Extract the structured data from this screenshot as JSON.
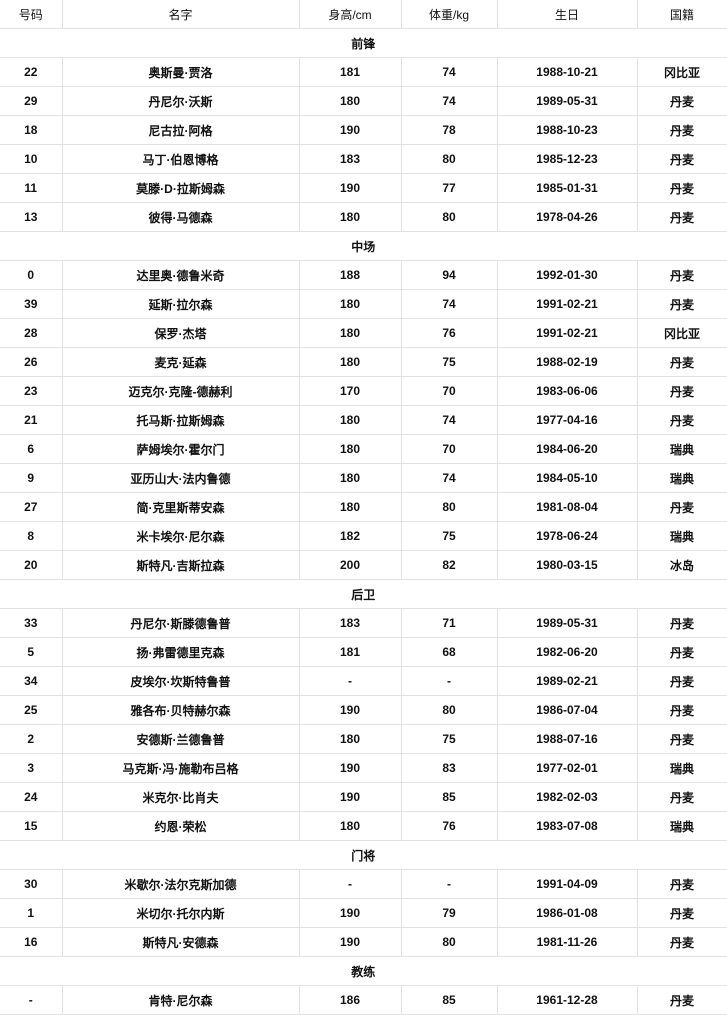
{
  "headers": [
    "号码",
    "名字",
    "身高/cm",
    "体重/kg",
    "生日",
    "国籍"
  ],
  "groups": [
    {
      "title": "前锋",
      "players": [
        [
          "22",
          "奥斯曼·贾洛",
          "181",
          "74",
          "1988-10-21",
          "冈比亚"
        ],
        [
          "29",
          "丹尼尔·沃斯",
          "180",
          "74",
          "1989-05-31",
          "丹麦"
        ],
        [
          "18",
          "尼古拉·阿格",
          "190",
          "78",
          "1988-10-23",
          "丹麦"
        ],
        [
          "10",
          "马丁·伯恩博格",
          "183",
          "80",
          "1985-12-23",
          "丹麦"
        ],
        [
          "11",
          "莫滕·D·拉斯姆森",
          "190",
          "77",
          "1985-01-31",
          "丹麦"
        ],
        [
          "13",
          "彼得·马德森",
          "180",
          "80",
          "1978-04-26",
          "丹麦"
        ]
      ]
    },
    {
      "title": "中场",
      "players": [
        [
          "0",
          "达里奥·德鲁米奇",
          "188",
          "94",
          "1992-01-30",
          "丹麦"
        ],
        [
          "39",
          "延斯·拉尔森",
          "180",
          "74",
          "1991-02-21",
          "丹麦"
        ],
        [
          "28",
          "保罗·杰塔",
          "180",
          "76",
          "1991-02-21",
          "冈比亚"
        ],
        [
          "26",
          "麦克·延森",
          "180",
          "75",
          "1988-02-19",
          "丹麦"
        ],
        [
          "23",
          "迈克尔·克隆-德赫利",
          "170",
          "70",
          "1983-06-06",
          "丹麦"
        ],
        [
          "21",
          "托马斯·拉斯姆森",
          "180",
          "74",
          "1977-04-16",
          "丹麦"
        ],
        [
          "6",
          "萨姆埃尔·霍尔门",
          "180",
          "70",
          "1984-06-20",
          "瑞典"
        ],
        [
          "9",
          "亚历山大·法内鲁德",
          "180",
          "74",
          "1984-05-10",
          "瑞典"
        ],
        [
          "27",
          "简·克里斯蒂安森",
          "180",
          "80",
          "1981-08-04",
          "丹麦"
        ],
        [
          "8",
          "米卡埃尔·尼尔森",
          "182",
          "75",
          "1978-06-24",
          "瑞典"
        ],
        [
          "20",
          "斯特凡·吉斯拉森",
          "200",
          "82",
          "1980-03-15",
          "冰岛"
        ]
      ]
    },
    {
      "title": "后卫",
      "players": [
        [
          "33",
          "丹尼尔·斯滕德鲁普",
          "183",
          "71",
          "1989-05-31",
          "丹麦"
        ],
        [
          "5",
          "扬·弗雷德里克森",
          "181",
          "68",
          "1982-06-20",
          "丹麦"
        ],
        [
          "34",
          "皮埃尔·坎斯特鲁普",
          "-",
          "-",
          "1989-02-21",
          "丹麦"
        ],
        [
          "25",
          "雅各布·贝特赫尔森",
          "190",
          "80",
          "1986-07-04",
          "丹麦"
        ],
        [
          "2",
          "安德斯·兰德鲁普",
          "180",
          "75",
          "1988-07-16",
          "丹麦"
        ],
        [
          "3",
          "马克斯·冯·施勒布吕格",
          "190",
          "83",
          "1977-02-01",
          "瑞典"
        ],
        [
          "24",
          "米克尔·比肖夫",
          "190",
          "85",
          "1982-02-03",
          "丹麦"
        ],
        [
          "15",
          "约恩·荣松",
          "180",
          "76",
          "1983-07-08",
          "瑞典"
        ]
      ]
    },
    {
      "title": "门将",
      "players": [
        [
          "30",
          "米歇尔·法尔克斯加德",
          "-",
          "-",
          "1991-04-09",
          "丹麦"
        ],
        [
          "1",
          "米切尔·托尔内斯",
          "190",
          "79",
          "1986-01-08",
          "丹麦"
        ],
        [
          "16",
          "斯特凡·安德森",
          "190",
          "80",
          "1981-11-26",
          "丹麦"
        ]
      ]
    },
    {
      "title": "教练",
      "players": [
        [
          "-",
          "肯特·尼尔森",
          "186",
          "85",
          "1961-12-28",
          "丹麦"
        ]
      ]
    }
  ]
}
